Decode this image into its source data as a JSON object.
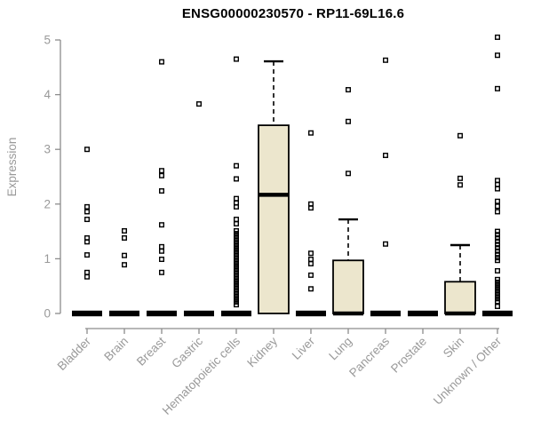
{
  "chart_data": {
    "type": "boxplot",
    "title": "ENSG00000230570 - RP11-69L16.6",
    "xlabel": "",
    "ylabel": "Expression",
    "ylim": [
      0,
      5
    ],
    "yticks": [
      0,
      1,
      2,
      3,
      4,
      5
    ],
    "grid": false,
    "legend": "none",
    "box_fill": "#ECE6CD",
    "box_stroke": "#000000",
    "axis_color": "#8c8c8c",
    "tick_label_color": "#999999",
    "categories": [
      "Bladder",
      "Brain",
      "Breast",
      "Gastric",
      "Hematopoietic cells",
      "Kidney",
      "Liver",
      "Lung",
      "Pancreas",
      "Prostate",
      "Skin",
      "Unknown / Other"
    ],
    "series": [
      {
        "category": "Bladder",
        "q1": 0,
        "median": 0,
        "q3": 0,
        "whisker_low": 0,
        "whisker_high": 0,
        "outliers": [
          3.0,
          1.95,
          1.86,
          1.72,
          1.38,
          1.31,
          1.07,
          0.75,
          0.67
        ]
      },
      {
        "category": "Brain",
        "q1": 0,
        "median": 0,
        "q3": 0,
        "whisker_low": 0,
        "whisker_high": 0,
        "outliers": [
          1.51,
          1.38,
          1.06,
          0.89
        ]
      },
      {
        "category": "Breast",
        "q1": 0,
        "median": 0,
        "q3": 0,
        "whisker_low": 0,
        "whisker_high": 0,
        "outliers": [
          4.6,
          2.61,
          2.52,
          2.24,
          1.62,
          1.22,
          1.14,
          0.99,
          0.75
        ]
      },
      {
        "category": "Gastric",
        "q1": 0,
        "median": 0,
        "q3": 0,
        "whisker_low": 0,
        "whisker_high": 0,
        "outliers": [
          3.83
        ]
      },
      {
        "category": "Hematopoietic cells",
        "q1": 0,
        "median": 0,
        "q3": 0,
        "whisker_low": 0,
        "whisker_high": 0,
        "outliers": [
          4.65,
          2.7,
          2.46,
          2.1,
          2.02,
          1.95,
          1.72,
          1.64,
          1.51,
          1.46,
          1.41,
          1.36,
          1.31,
          1.26,
          1.21,
          1.16,
          1.11,
          1.06,
          1.01,
          0.96,
          0.91,
          0.86,
          0.81,
          0.76,
          0.71,
          0.66,
          0.61,
          0.56,
          0.51,
          0.46,
          0.41,
          0.36,
          0.31,
          0.26,
          0.21,
          0.16
        ]
      },
      {
        "category": "Kidney",
        "q1": 0,
        "median": 2.17,
        "q3": 3.44,
        "whisker_low": 0,
        "whisker_high": 4.61,
        "outliers": []
      },
      {
        "category": "Liver",
        "q1": 0,
        "median": 0,
        "q3": 0,
        "whisker_low": 0,
        "whisker_high": 0,
        "outliers": [
          3.3,
          2.0,
          1.93,
          1.1,
          0.99,
          0.91,
          0.7,
          0.45
        ]
      },
      {
        "category": "Lung",
        "q1": 0,
        "median": 0,
        "q3": 0.97,
        "whisker_low": 0,
        "whisker_high": 1.72,
        "outliers": [
          4.09,
          3.51,
          2.56
        ]
      },
      {
        "category": "Pancreas",
        "q1": 0,
        "median": 0,
        "q3": 0,
        "whisker_low": 0,
        "whisker_high": 0,
        "outliers": [
          4.63,
          2.89,
          1.27
        ]
      },
      {
        "category": "Prostate",
        "q1": 0,
        "median": 0,
        "q3": 0,
        "whisker_low": 0,
        "whisker_high": 0,
        "outliers": []
      },
      {
        "category": "Skin",
        "q1": 0,
        "median": 0,
        "q3": 0.58,
        "whisker_low": 0,
        "whisker_high": 1.25,
        "outliers": [
          3.25,
          2.47,
          2.35
        ]
      },
      {
        "category": "Unknown / Other",
        "q1": 0,
        "median": 0,
        "q3": 0,
        "whisker_low": 0,
        "whisker_high": 0,
        "outliers": [
          5.05,
          4.72,
          4.11,
          2.43,
          2.36,
          2.28,
          2.05,
          1.96,
          1.86,
          1.5,
          1.44,
          1.38,
          1.32,
          1.26,
          1.2,
          1.14,
          1.08,
          1.02,
          0.97,
          0.78,
          0.62,
          0.57,
          0.52,
          0.47,
          0.42,
          0.37,
          0.32,
          0.27,
          0.22,
          0.13
        ]
      }
    ]
  }
}
